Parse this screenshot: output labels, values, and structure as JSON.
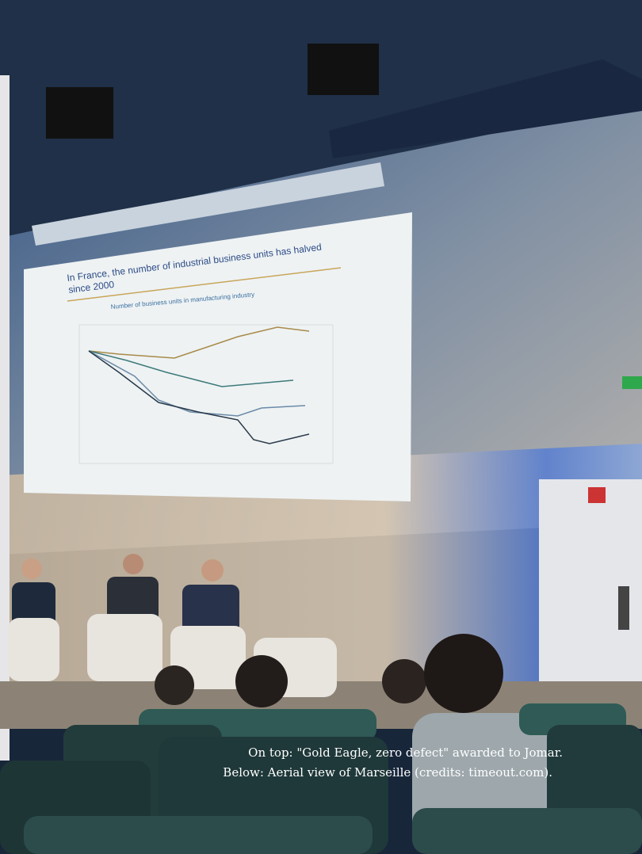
{
  "slide": {
    "title": [
      "In France, the number of industrial business units has halved",
      "since 2000"
    ],
    "subtitle": "Number of business units in manufacturing industry"
  },
  "caption": {
    "lines": [
      "On top: \"Gold Eagle, zero defect\" awarded to Jomar.",
      "Below: Aerial view of Marseille (credits: timeout.com)."
    ]
  }
}
